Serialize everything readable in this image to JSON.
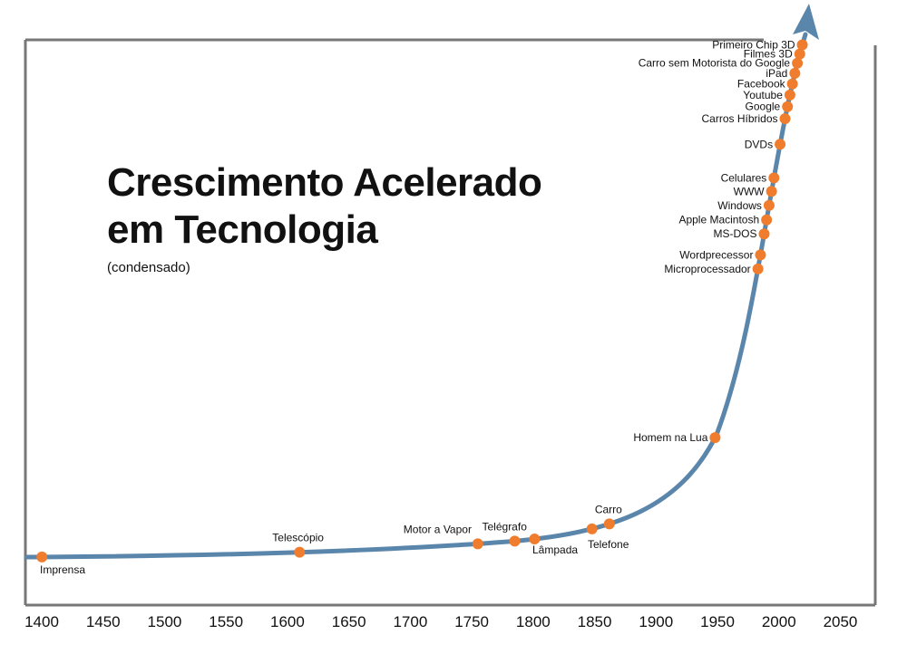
{
  "title_line1": "Crescimento Acelerado",
  "title_line2": "em Tecnologia",
  "subtitle": "(condensado)",
  "colors": {
    "curve": "#5b86ab",
    "point": "#f07d2d",
    "axis": "#777777",
    "text": "#111111"
  },
  "chart_data": {
    "type": "line",
    "title": "Crescimento Acelerado em Tecnologia",
    "subtitle": "(condensado)",
    "x_ticks": [
      "1400",
      "1450",
      "1500",
      "1550",
      "1600",
      "1650",
      "1700",
      "1750",
      "1800",
      "1850",
      "1900",
      "1950",
      "2000",
      "2050"
    ],
    "xlim": [
      1400,
      2050
    ],
    "events": [
      {
        "year": 1400,
        "label": "Imprensa"
      },
      {
        "year": 1610,
        "label": "Telescópio"
      },
      {
        "year": 1755,
        "label": "Motor a Vapor"
      },
      {
        "year": 1785,
        "label": "Telégrafo"
      },
      {
        "year": 1801,
        "label": "Lâmpada"
      },
      {
        "year": 1848,
        "label": "Telefone"
      },
      {
        "year": 1862,
        "label": "Carro"
      },
      {
        "year": 1948,
        "label": "Homem na Lua"
      },
      {
        "year": 1983,
        "label": "Microprocessador"
      },
      {
        "year": 1985,
        "label": "Wordprecessor"
      },
      {
        "year": 1988,
        "label": "MS-DOS"
      },
      {
        "year": 1990,
        "label": "Apple Macintosh"
      },
      {
        "year": 1992,
        "label": "Windows"
      },
      {
        "year": 1994,
        "label": "WWW"
      },
      {
        "year": 1996,
        "label": "Celulares"
      },
      {
        "year": 2001,
        "label": "DVDs"
      },
      {
        "year": 2005,
        "label": "Carros Híbridos"
      },
      {
        "year": 2007,
        "label": "Google"
      },
      {
        "year": 2009,
        "label": "Youtube"
      },
      {
        "year": 2011,
        "label": "Facebook"
      },
      {
        "year": 2013,
        "label": "iPad"
      },
      {
        "year": 2015,
        "label": "Carro sem Motorista do Google"
      },
      {
        "year": 2017,
        "label": "Filmes 3D"
      },
      {
        "year": 2019,
        "label": "Primeiro Chip 3D"
      }
    ]
  }
}
